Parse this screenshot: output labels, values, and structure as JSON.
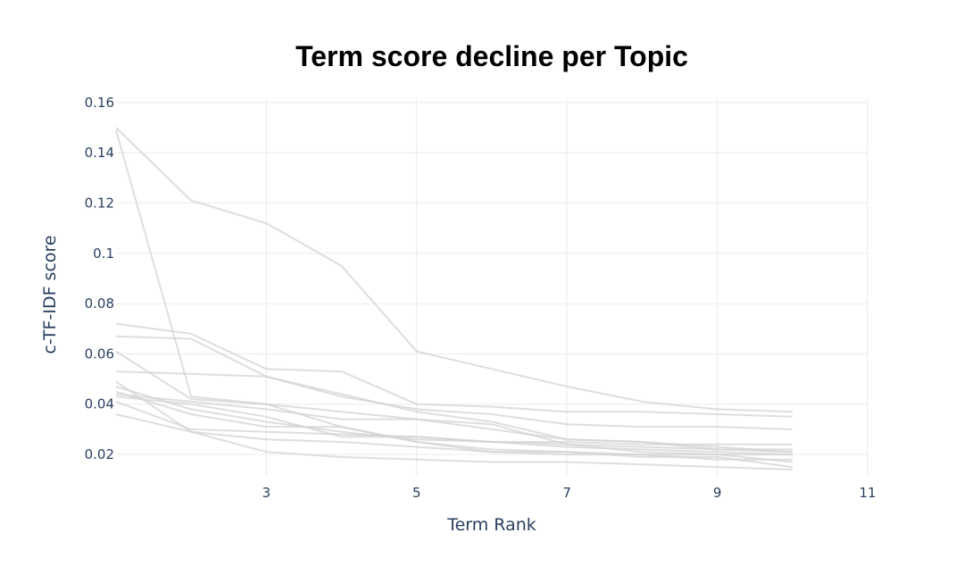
{
  "chart_data": {
    "type": "line",
    "title": "Term score decline per Topic",
    "xlabel": "Term Rank",
    "ylabel": "c-TF-IDF score",
    "xlim": [
      1,
      11
    ],
    "ylim": [
      0.0115,
      0.1617
    ],
    "x_ticks": [
      3,
      5,
      7,
      9,
      11
    ],
    "y_ticks": [
      0.02,
      0.04,
      0.06,
      0.08,
      0.1,
      0.12,
      0.14,
      0.16
    ],
    "y_tick_labels": [
      "0.02",
      "0.04",
      "0.06",
      "0.08",
      "0.1",
      "0.12",
      "0.14",
      "0.16"
    ],
    "grid": true,
    "legend": "none",
    "line_color": "#d3d3d3",
    "x": [
      1,
      2,
      3,
      4,
      5,
      6,
      7,
      8,
      9,
      10
    ],
    "series": [
      {
        "values": [
          0.15,
          0.121,
          0.112,
          0.095,
          0.061,
          0.054,
          0.047,
          0.041,
          0.038,
          0.037
        ]
      },
      {
        "values": [
          0.149,
          0.043,
          0.04,
          0.031,
          0.025,
          0.022,
          0.021,
          0.02,
          0.02,
          0.02
        ]
      },
      {
        "values": [
          0.072,
          0.068,
          0.054,
          0.053,
          0.04,
          0.039,
          0.037,
          0.037,
          0.036,
          0.035
        ]
      },
      {
        "values": [
          0.067,
          0.066,
          0.051,
          0.043,
          0.038,
          0.036,
          0.032,
          0.031,
          0.031,
          0.03
        ]
      },
      {
        "values": [
          0.061,
          0.042,
          0.04,
          0.037,
          0.034,
          0.03,
          0.026,
          0.025,
          0.022,
          0.021
        ]
      },
      {
        "values": [
          0.053,
          0.052,
          0.051,
          0.044,
          0.037,
          0.033,
          0.026,
          0.025,
          0.023,
          0.021
        ]
      },
      {
        "values": [
          0.047,
          0.038,
          0.033,
          0.029,
          0.026,
          0.025,
          0.025,
          0.024,
          0.024,
          0.024
        ]
      },
      {
        "values": [
          0.045,
          0.036,
          0.031,
          0.031,
          0.025,
          0.021,
          0.021,
          0.019,
          0.019,
          0.015
        ]
      },
      {
        "values": [
          0.044,
          0.041,
          0.038,
          0.034,
          0.034,
          0.032,
          0.024,
          0.021,
          0.02,
          0.017
        ]
      },
      {
        "values": [
          0.043,
          0.04,
          0.035,
          0.027,
          0.027,
          0.025,
          0.024,
          0.023,
          0.022,
          0.022
        ]
      },
      {
        "values": [
          0.041,
          0.03,
          0.029,
          0.028,
          0.027,
          0.025,
          0.023,
          0.022,
          0.021,
          0.02
        ]
      },
      {
        "values": [
          0.036,
          0.029,
          0.026,
          0.025,
          0.023,
          0.021,
          0.02,
          0.02,
          0.018,
          0.018
        ]
      },
      {
        "values": [
          0.049,
          0.029,
          0.021,
          0.019,
          0.018,
          0.017,
          0.017,
          0.016,
          0.015,
          0.014
        ]
      }
    ]
  }
}
